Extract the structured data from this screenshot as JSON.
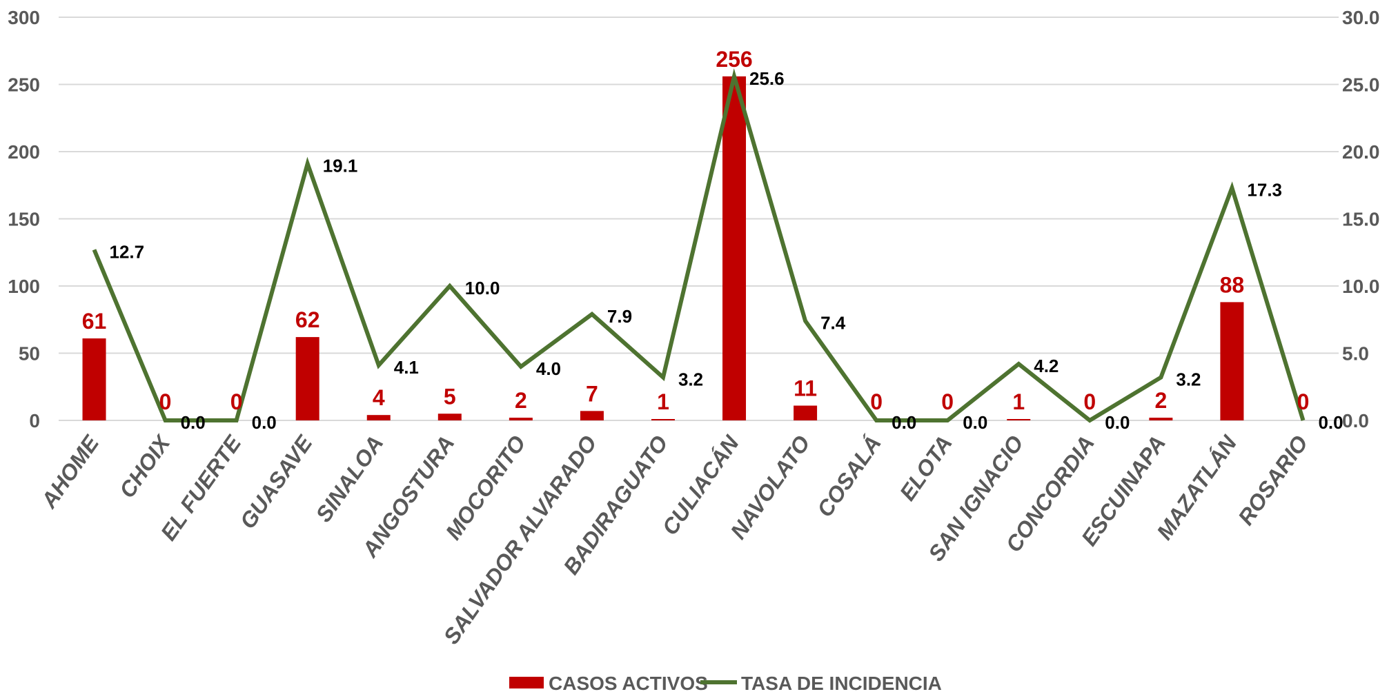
{
  "chart_data": {
    "type": "bar",
    "title": "",
    "categories": [
      "AHOME",
      "CHOIX",
      "EL FUERTE",
      "GUASAVE",
      "SINALOA",
      "ANGOSTURA",
      "MOCORITO",
      "SALVADOR ALVARADO",
      "BADIRAGUATO",
      "CULIACÁN",
      "NAVOLATO",
      "COSALÁ",
      "ELOTA",
      "SAN IGNACIO",
      "CONCORDIA",
      "ESCUINAPA",
      "MAZATLÁN",
      "ROSARIO"
    ],
    "series": [
      {
        "name": "CASOS ACTIVOS",
        "type": "bar",
        "axis": "left",
        "color": "#c00000",
        "values": [
          61,
          0,
          0,
          62,
          4,
          5,
          2,
          7,
          1,
          256,
          11,
          0,
          0,
          1,
          0,
          2,
          88,
          0
        ],
        "labels": [
          "61",
          "0",
          "0",
          "62",
          "4",
          "5",
          "2",
          "7",
          "1",
          "256",
          "11",
          "0",
          "0",
          "1",
          "0",
          "2",
          "88",
          "0"
        ]
      },
      {
        "name": "TASA DE INCIDENCIA",
        "type": "line",
        "axis": "right",
        "color": "#4e7330",
        "values": [
          12.7,
          0.0,
          0.0,
          19.1,
          4.1,
          10.0,
          4.0,
          7.9,
          3.2,
          25.6,
          7.4,
          0.0,
          0.0,
          4.2,
          0.0,
          3.2,
          17.3,
          0.0
        ],
        "labels": [
          "12.7",
          "0.0",
          "0.0",
          "19.1",
          "4.1",
          "10.0",
          "4.0",
          "7.9",
          "3.2",
          "25.6",
          "7.4",
          "0.0",
          "0.0",
          "4.2",
          "0.0",
          "3.2",
          "17.3",
          "0.0"
        ]
      }
    ],
    "y_left": {
      "min": 0,
      "max": 300,
      "ticks": [
        "0",
        "50",
        "100",
        "150",
        "200",
        "250",
        "300"
      ]
    },
    "y_right": {
      "min": 0,
      "max": 30,
      "ticks": [
        "0.0",
        "5.0",
        "10.0",
        "15.0",
        "20.0",
        "25.0",
        "30.0"
      ]
    },
    "grid": true,
    "legend_position": "bottom-center"
  }
}
